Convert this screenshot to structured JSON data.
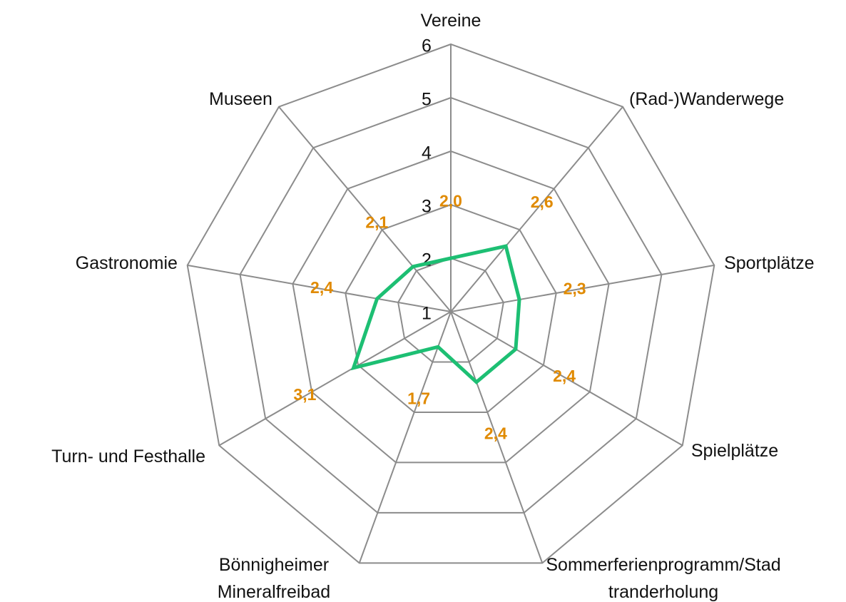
{
  "chart_data": {
    "type": "radar",
    "categories": [
      "Vereine",
      "(Rad-)Wanderwege",
      "Sportplätze",
      "Spielplätze",
      "Sommerferienprogramm/Stadtranderholung",
      "Bönnigheimer Mineralfreibad",
      "Turn- und Festhalle",
      "Gastronomie",
      "Museen"
    ],
    "series": [
      {
        "color": "#1dbf73",
        "values": [
          2.0,
          2.6,
          2.3,
          2.4,
          2.4,
          1.7,
          3.1,
          2.4,
          2.1
        ],
        "value_labels": [
          "2,0",
          "2,6",
          "2,3",
          "2,4",
          "2,4",
          "1,7",
          "3,1",
          "2,4",
          "2,1"
        ]
      }
    ],
    "ylim": [
      1,
      6
    ],
    "yticks": [
      1,
      2,
      3,
      4,
      5,
      6
    ],
    "grid": true,
    "label_color": "#e08a00"
  }
}
